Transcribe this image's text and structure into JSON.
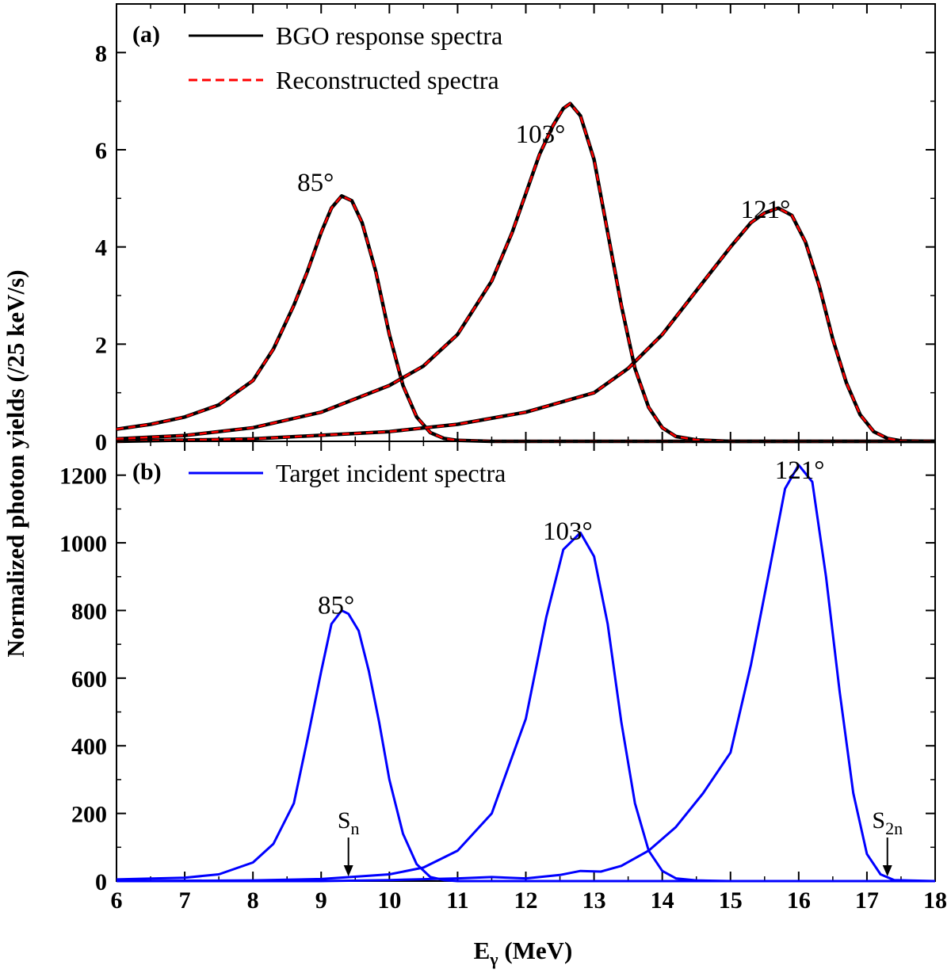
{
  "figure": {
    "xlabel_main": "E",
    "xlabel_sub": "γ",
    "xlabel_unit": " (MeV)",
    "ylabel": "Normalized photon yields (/25 keV/s)"
  },
  "chart_data": [
    {
      "type": "line",
      "panel": "(a)",
      "xlim": [
        6,
        18
      ],
      "ylim": [
        0,
        9
      ],
      "x_ticks": [
        6,
        7,
        8,
        9,
        10,
        11,
        12,
        13,
        14,
        15,
        16,
        17,
        18
      ],
      "y_ticks": [
        0,
        2,
        4,
        6,
        8
      ],
      "legend": [
        {
          "label": "BGO response spectra",
          "color": "#000000",
          "style": "solid"
        },
        {
          "label": "Reconstructed spectra",
          "color": "#ff0000",
          "style": "dashed"
        }
      ],
      "series": [
        {
          "name": "85°",
          "angle_label": "85°",
          "label_at": [
            8.65,
            5.15
          ],
          "x": [
            6.0,
            6.5,
            7.0,
            7.5,
            8.0,
            8.3,
            8.6,
            8.8,
            9.0,
            9.15,
            9.3,
            9.45,
            9.6,
            9.8,
            10.0,
            10.2,
            10.4,
            10.6,
            10.8,
            11.0,
            11.5,
            12.0,
            18.0
          ],
          "y": [
            0.25,
            0.35,
            0.5,
            0.75,
            1.25,
            1.9,
            2.8,
            3.5,
            4.3,
            4.8,
            5.05,
            4.95,
            4.5,
            3.5,
            2.2,
            1.15,
            0.5,
            0.18,
            0.06,
            0.02,
            0.0,
            0.0,
            0.0
          ]
        },
        {
          "name": "103°",
          "angle_label": "103°",
          "label_at": [
            11.85,
            6.15
          ],
          "x": [
            6.0,
            7.0,
            8.0,
            9.0,
            10.0,
            10.5,
            11.0,
            11.5,
            11.8,
            12.0,
            12.2,
            12.4,
            12.55,
            12.65,
            12.8,
            13.0,
            13.2,
            13.4,
            13.6,
            13.8,
            14.0,
            14.2,
            14.5,
            15.0,
            18.0
          ],
          "y": [
            0.05,
            0.12,
            0.28,
            0.6,
            1.15,
            1.55,
            2.2,
            3.3,
            4.3,
            5.1,
            5.9,
            6.5,
            6.85,
            6.95,
            6.7,
            5.8,
            4.3,
            2.8,
            1.5,
            0.7,
            0.28,
            0.1,
            0.03,
            0.0,
            0.0
          ]
        },
        {
          "name": "121°",
          "angle_label": "121°",
          "label_at": [
            15.15,
            4.6
          ],
          "x": [
            6.0,
            8.0,
            10.0,
            11.0,
            12.0,
            13.0,
            13.5,
            14.0,
            14.5,
            15.0,
            15.3,
            15.5,
            15.7,
            15.9,
            16.1,
            16.3,
            16.5,
            16.7,
            16.9,
            17.1,
            17.3,
            17.5,
            18.0
          ],
          "y": [
            0.0,
            0.05,
            0.2,
            0.35,
            0.6,
            1.0,
            1.5,
            2.2,
            3.1,
            4.0,
            4.5,
            4.7,
            4.8,
            4.65,
            4.1,
            3.2,
            2.1,
            1.2,
            0.55,
            0.2,
            0.06,
            0.01,
            0.0
          ]
        }
      ]
    },
    {
      "type": "line",
      "panel": "(b)",
      "xlim": [
        6,
        18
      ],
      "ylim": [
        0,
        1300
      ],
      "x_ticks": [
        6,
        7,
        8,
        9,
        10,
        11,
        12,
        13,
        14,
        15,
        16,
        17,
        18
      ],
      "y_ticks": [
        0,
        200,
        400,
        600,
        800,
        1000,
        1200
      ],
      "legend": [
        {
          "label": "Target incident spectra",
          "color": "#0000ff",
          "style": "solid"
        }
      ],
      "series": [
        {
          "name": "85°",
          "angle_label": "85°",
          "label_at": [
            8.95,
            790
          ],
          "x": [
            6.0,
            7.0,
            7.5,
            8.0,
            8.3,
            8.6,
            8.8,
            9.0,
            9.15,
            9.3,
            9.4,
            9.55,
            9.7,
            9.85,
            10.0,
            10.2,
            10.4,
            10.6,
            10.8,
            11.0,
            18.0
          ],
          "y": [
            5,
            10,
            20,
            55,
            110,
            230,
            420,
            620,
            760,
            800,
            790,
            740,
            620,
            470,
            300,
            140,
            50,
            12,
            3,
            0,
            0
          ]
        },
        {
          "name": "103°",
          "angle_label": "103°",
          "label_at": [
            12.25,
            1010
          ],
          "x": [
            6.0,
            8.0,
            9.0,
            10.0,
            10.5,
            11.0,
            11.5,
            12.0,
            12.3,
            12.55,
            12.8,
            13.0,
            13.2,
            13.4,
            13.6,
            13.8,
            14.0,
            14.2,
            14.5,
            15.0,
            18.0
          ],
          "y": [
            0,
            2,
            6,
            20,
            40,
            90,
            200,
            480,
            780,
            980,
            1030,
            960,
            760,
            470,
            230,
            90,
            30,
            8,
            2,
            0,
            0
          ]
        },
        {
          "name": "121°",
          "angle_label": "121°",
          "label_at": [
            15.65,
            1190
          ],
          "x": [
            6.0,
            9.0,
            10.0,
            11.0,
            11.5,
            12.0,
            12.5,
            12.8,
            13.1,
            13.4,
            13.8,
            14.2,
            14.6,
            15.0,
            15.3,
            15.6,
            15.8,
            16.0,
            16.2,
            16.4,
            16.6,
            16.8,
            17.0,
            17.2,
            17.4,
            18.0
          ],
          "y": [
            0,
            0,
            3,
            8,
            12,
            8,
            18,
            30,
            28,
            45,
            90,
            160,
            260,
            380,
            640,
            950,
            1160,
            1230,
            1180,
            900,
            560,
            260,
            80,
            20,
            3,
            0
          ]
        }
      ]
    }
  ],
  "markers": [
    {
      "main": "S",
      "sub": "n",
      "x": 9.4
    },
    {
      "main": "S",
      "sub": "2n",
      "x": 17.3
    }
  ]
}
